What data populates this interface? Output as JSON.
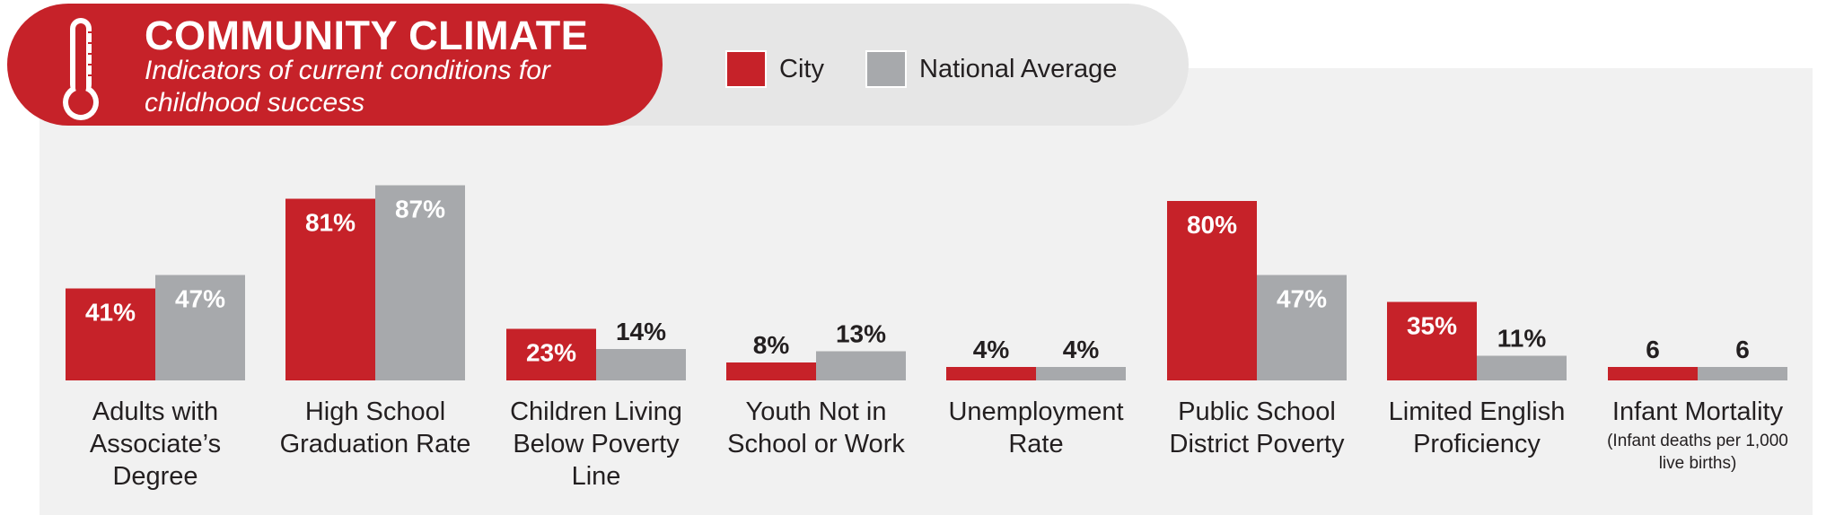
{
  "header": {
    "title": "COMMUNITY CLIMATE",
    "subtitle": "Indicators of current conditions for childhood success"
  },
  "legend": [
    {
      "label": "City",
      "color": "#c62229"
    },
    {
      "label": "National Average",
      "color": "#a7a9ac"
    }
  ],
  "icons": {
    "thermometer": "thermometer-icon"
  },
  "chart_data": {
    "type": "bar",
    "title": "COMMUNITY CLIMATE",
    "subtitle": "Indicators of current conditions for childhood success",
    "categories": [
      "Adults with Associate’s Degree",
      "High School Graduation Rate",
      "Children Living Below Poverty Line",
      "Youth Not in School or Work",
      "Unemployment Rate",
      "Public School District Poverty",
      "Limited English Proficiency",
      "Infant Mortality"
    ],
    "category_notes": [
      "",
      "",
      "",
      "",
      "",
      "",
      "",
      "(Infant deaths per 1,000 live births)"
    ],
    "series": [
      {
        "name": "City",
        "color": "#c62229",
        "values": [
          41,
          81,
          23,
          8,
          4,
          80,
          35,
          6
        ],
        "labels": [
          "41%",
          "81%",
          "23%",
          "8%",
          "4%",
          "80%",
          "35%",
          "6"
        ]
      },
      {
        "name": "National Average",
        "color": "#a7a9ac",
        "values": [
          47,
          87,
          14,
          13,
          4,
          47,
          11,
          6
        ],
        "labels": [
          "47%",
          "87%",
          "14%",
          "13%",
          "4%",
          "47%",
          "11%",
          "6"
        ]
      }
    ],
    "grid": false,
    "legend_position": "top"
  }
}
